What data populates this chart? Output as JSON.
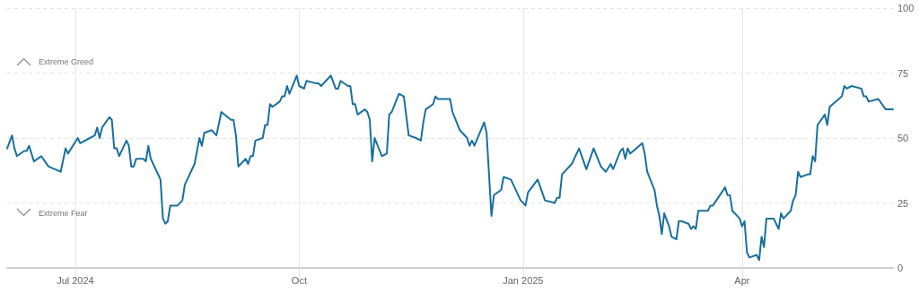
{
  "chart_data": {
    "type": "line",
    "x": [
      "2024-06-03",
      "2024-06-05",
      "2024-06-06",
      "2024-06-07",
      "2024-06-10",
      "2024-06-11",
      "2024-06-12",
      "2024-06-14",
      "2024-06-17",
      "2024-06-20",
      "2024-06-25",
      "2024-06-27",
      "2024-06-28",
      "2024-07-02",
      "2024-07-03",
      "2024-07-07",
      "2024-07-09",
      "2024-07-10",
      "2024-07-11",
      "2024-07-12",
      "2024-07-15",
      "2024-07-16",
      "2024-07-17",
      "2024-07-18",
      "2024-07-19",
      "2024-07-22",
      "2024-07-23",
      "2024-07-24",
      "2024-07-25",
      "2024-07-26",
      "2024-07-29",
      "2024-07-30",
      "2024-07-31",
      "2024-08-01",
      "2024-08-02",
      "2024-08-05",
      "2024-08-06",
      "2024-08-07",
      "2024-08-08",
      "2024-08-09",
      "2024-08-12",
      "2024-08-14",
      "2024-08-15",
      "2024-08-19",
      "2024-08-21",
      "2024-08-22",
      "2024-08-23",
      "2024-08-26",
      "2024-08-28",
      "2024-08-30",
      "2024-09-03",
      "2024-09-04",
      "2024-09-05",
      "2024-09-06",
      "2024-09-09",
      "2024-09-10",
      "2024-09-11",
      "2024-09-12",
      "2024-09-13",
      "2024-09-16",
      "2024-09-17",
      "2024-09-18",
      "2024-09-19",
      "2024-09-20",
      "2024-09-23",
      "2024-09-24",
      "2024-09-25",
      "2024-09-26",
      "2024-09-27",
      "2024-09-30",
      "2024-10-01",
      "2024-10-03",
      "2024-10-04",
      "2024-10-08",
      "2024-10-09",
      "2024-10-10",
      "2024-10-14",
      "2024-10-16",
      "2024-10-17",
      "2024-10-18",
      "2024-10-21",
      "2024-10-22",
      "2024-10-23",
      "2024-10-24",
      "2024-10-25",
      "2024-10-28",
      "2024-10-29",
      "2024-10-30",
      "2024-10-31",
      "2024-11-01",
      "2024-11-04",
      "2024-11-06",
      "2024-11-07",
      "2024-11-08",
      "2024-11-11",
      "2024-11-13",
      "2024-11-15",
      "2024-11-18",
      "2024-11-20",
      "2024-11-21",
      "2024-11-22",
      "2024-11-25",
      "2024-11-26",
      "2024-11-27",
      "2024-11-29",
      "2024-12-02",
      "2024-12-03",
      "2024-12-06",
      "2024-12-09",
      "2024-12-10",
      "2024-12-11",
      "2024-12-12",
      "2024-12-16",
      "2024-12-17",
      "2024-12-19",
      "2024-12-20",
      "2024-12-23",
      "2024-12-24",
      "2024-12-27",
      "2024-12-31",
      "2025-01-02",
      "2025-01-03",
      "2025-01-07",
      "2025-01-10",
      "2025-01-14",
      "2025-01-15",
      "2025-01-16",
      "2025-01-17",
      "2025-01-21",
      "2025-01-24",
      "2025-01-27",
      "2025-01-30",
      "2025-02-02",
      "2025-02-04",
      "2025-02-06",
      "2025-02-07",
      "2025-02-10",
      "2025-02-11",
      "2025-02-12",
      "2025-02-13",
      "2025-02-14",
      "2025-02-19",
      "2025-02-20",
      "2025-02-21",
      "2025-02-24",
      "2025-02-25",
      "2025-02-26",
      "2025-02-27",
      "2025-02-28",
      "2025-03-02",
      "2025-03-03",
      "2025-03-05",
      "2025-03-06",
      "2025-03-07",
      "2025-03-10",
      "2025-03-11",
      "2025-03-12",
      "2025-03-13",
      "2025-03-14",
      "2025-03-18",
      "2025-03-19",
      "2025-03-20",
      "2025-03-25",
      "2025-03-26",
      "2025-03-27",
      "2025-03-28",
      "2025-03-31",
      "2025-04-01",
      "2025-04-02",
      "2025-04-03",
      "2025-04-04",
      "2025-04-07",
      "2025-04-08",
      "2025-04-09",
      "2025-04-10",
      "2025-04-11",
      "2025-04-14",
      "2025-04-16",
      "2025-04-17",
      "2025-04-18",
      "2025-04-21",
      "2025-04-22",
      "2025-04-23",
      "2025-04-24",
      "2025-04-25",
      "2025-04-28",
      "2025-04-29",
      "2025-04-30",
      "2025-05-01",
      "2025-05-02",
      "2025-05-05",
      "2025-05-06",
      "2025-05-07",
      "2025-05-12",
      "2025-05-13",
      "2025-05-14",
      "2025-05-16",
      "2025-05-20",
      "2025-05-21",
      "2025-05-22",
      "2025-05-23",
      "2025-05-27",
      "2025-05-30",
      "2025-06-02"
    ],
    "series": [
      {
        "color": "#19709f",
        "values": [
          46,
          51,
          46,
          43,
          45,
          45,
          47,
          41,
          43,
          39,
          37,
          46,
          44,
          50,
          48,
          50,
          51,
          54,
          50,
          54,
          58,
          57,
          46,
          46,
          43,
          49,
          47,
          39,
          39,
          42,
          42,
          41,
          47,
          42,
          40,
          34,
          19,
          17,
          18,
          24,
          24,
          26,
          32,
          40,
          50,
          47,
          52,
          53,
          51,
          60,
          57,
          57,
          51,
          39,
          42,
          40,
          43,
          43,
          49,
          50,
          55,
          55,
          63,
          62,
          64,
          66,
          66,
          70,
          67,
          74,
          70,
          69,
          72,
          71,
          71,
          70,
          74,
          69,
          69,
          72,
          70,
          70,
          63,
          63,
          59,
          61,
          60,
          57,
          41,
          50,
          43,
          44,
          59,
          60,
          67,
          66,
          51,
          50,
          49,
          56,
          61,
          63,
          66,
          65,
          65,
          65,
          60,
          53,
          50,
          47,
          49,
          47,
          56,
          52,
          20,
          28,
          30,
          35,
          34,
          26,
          24,
          29,
          34,
          26,
          25,
          27,
          27,
          36,
          40,
          46,
          38,
          46,
          39,
          37,
          40,
          38,
          45,
          46,
          42,
          46,
          44,
          48,
          44,
          37,
          30,
          24,
          20,
          13,
          21,
          16,
          12,
          11,
          18,
          18,
          17,
          15,
          16,
          15,
          22,
          22,
          24,
          24,
          31,
          28,
          28,
          22,
          19,
          16,
          18,
          6,
          4,
          5,
          3,
          12,
          8,
          19,
          19,
          15,
          21,
          19,
          22,
          26,
          28,
          37,
          35,
          36,
          36,
          43,
          41,
          55,
          59,
          55,
          62,
          66,
          70,
          69,
          70,
          69,
          66,
          66,
          64,
          65,
          61,
          61
        ]
      }
    ],
    "xlim": [
      "2024-06-03",
      "2025-06-02"
    ],
    "xticks": [
      {
        "value": "2024-07-01",
        "label": "Jul 2024"
      },
      {
        "value": "2024-10-01",
        "label": "Oct"
      },
      {
        "value": "2025-01-01",
        "label": "Jan 2025"
      },
      {
        "value": "2025-04-01",
        "label": "Apr"
      }
    ],
    "ylim": [
      0,
      100
    ],
    "yticks": [
      0,
      25,
      50,
      75,
      100
    ],
    "grid": true,
    "marker": "none",
    "line_style": "solid",
    "annotations": [
      "Extreme Greed",
      "Extreme Fear"
    ]
  }
}
